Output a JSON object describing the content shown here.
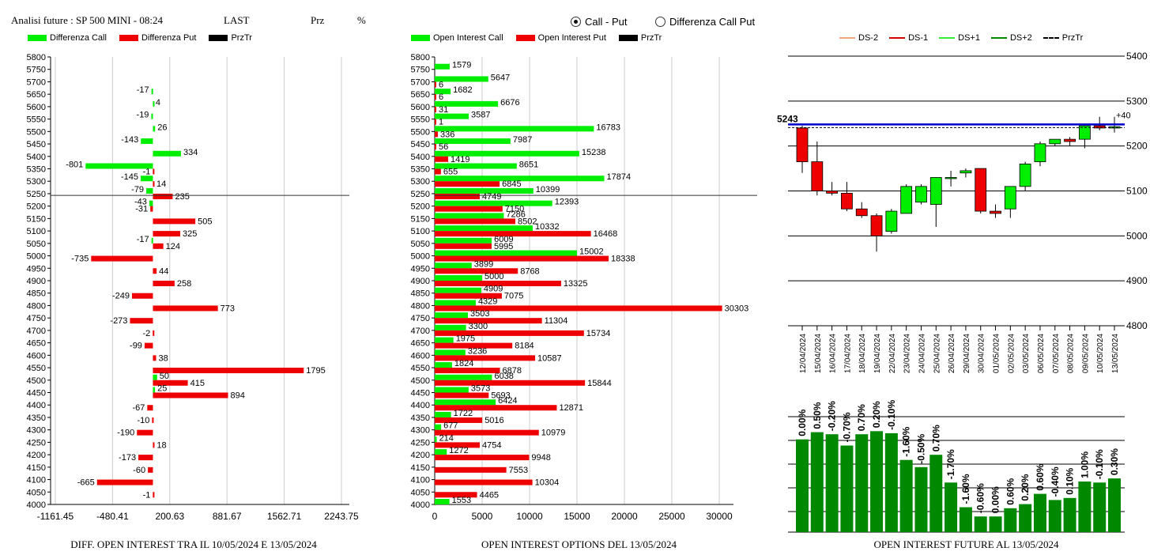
{
  "header": {
    "title": "Analisi future : SP 500 MINI - 08:24",
    "last_label": "LAST",
    "prz_label": "Prz",
    "pct_label": "%"
  },
  "radios": [
    {
      "label": "Call - Put",
      "selected": true
    },
    {
      "label": "Differenza Call Put",
      "selected": false
    }
  ],
  "colors": {
    "green": "#00ee00",
    "red": "#ee0000",
    "darkgreen": "#008800",
    "blue": "#0000cc"
  },
  "legend_left": [
    {
      "label": "Differenza Call",
      "color": "#00ee00"
    },
    {
      "label": "Differenza Put",
      "color": "#ee0000"
    },
    {
      "label": "PrzTr",
      "color": "#000000"
    }
  ],
  "legend_mid": [
    {
      "label": "Open Interest Call",
      "color": "#00ee00"
    },
    {
      "label": "Open Interest Put",
      "color": "#ee0000"
    },
    {
      "label": "PrzTr",
      "color": "#000000"
    }
  ],
  "legend_right": [
    {
      "label": "DS-2",
      "color": "#f4a582",
      "style": "solid"
    },
    {
      "label": "DS-1",
      "color": "#dd0000",
      "style": "solid"
    },
    {
      "label": "DS+1",
      "color": "#33ee33",
      "style": "solid"
    },
    {
      "label": "DS+2",
      "color": "#008800",
      "style": "solid"
    },
    {
      "label": "PrzTr",
      "color": "#000000",
      "style": "dashed"
    }
  ],
  "captions": {
    "left": "DIFF. OPEN INTEREST TRA IL 10/05/2024 E 13/05/2024",
    "mid": "OPEN INTEREST OPTIONS DEL 13/05/2024",
    "right": "OPEN INTEREST FUTURE AL 13/05/2024"
  },
  "chart_data": [
    {
      "type": "bar",
      "orientation": "horizontal",
      "title": "DIFF. OPEN INTEREST TRA IL 10/05/2024 E 13/05/2024",
      "categories": [
        5800,
        5750,
        5700,
        5650,
        5600,
        5550,
        5500,
        5450,
        5400,
        5350,
        5300,
        5250,
        5200,
        5150,
        5100,
        5050,
        5000,
        4950,
        4900,
        4850,
        4800,
        4750,
        4700,
        4650,
        4600,
        4550,
        4500,
        4450,
        4400,
        4350,
        4300,
        4250,
        4200,
        4150,
        4100,
        4050,
        4000
      ],
      "xticks": [
        "-1161.45",
        "-480.41",
        "200.63",
        "881.67",
        "1562.71",
        "2243.75"
      ],
      "xlim": [
        -1161.45,
        2243.75
      ],
      "reference_price": 5243,
      "series": [
        {
          "name": "Differenza Call",
          "labeled": [
            null,
            null,
            null,
            -17,
            4,
            -19,
            26,
            -143,
            334,
            -801,
            -145,
            -79,
            -43,
            null,
            null,
            -17,
            null,
            null,
            null,
            null,
            null,
            null,
            null,
            null,
            null,
            null,
            50,
            25,
            null,
            null,
            null,
            null,
            null,
            null,
            null,
            null,
            null
          ]
        },
        {
          "name": "Differenza Put",
          "labeled": [
            null,
            null,
            null,
            null,
            null,
            null,
            null,
            null,
            null,
            -1,
            14,
            235,
            -31,
            505,
            325,
            124,
            -735,
            44,
            258,
            -249,
            773,
            -273,
            -2,
            -99,
            38,
            1795,
            415,
            894,
            -67,
            -10,
            -190,
            18,
            -173,
            -60,
            -665,
            -1,
            null
          ]
        }
      ],
      "label_strings": [
        [
          "",
          "",
          ""
        ],
        [
          "",
          "",
          ""
        ],
        [
          "",
          "",
          ""
        ],
        [
          "-17",
          "",
          ""
        ],
        [
          "4",
          "",
          ""
        ],
        [
          "-19",
          "",
          ""
        ],
        [
          "26",
          "",
          ""
        ],
        [
          "-143",
          "",
          ""
        ],
        [
          "334",
          "",
          ""
        ],
        [
          "-801",
          "-1",
          ""
        ],
        [
          "-145",
          "14",
          ""
        ],
        [
          "-79",
          "235",
          ""
        ],
        [
          "-43",
          "-31",
          ""
        ],
        [
          "",
          "505",
          ""
        ],
        [
          "",
          "325",
          ""
        ],
        [
          "-17",
          "124",
          ""
        ],
        [
          "",
          "-735",
          ""
        ],
        [
          "",
          "44",
          ""
        ],
        [
          "",
          "258",
          ""
        ],
        [
          "",
          "-249",
          ""
        ],
        [
          "",
          "773",
          ""
        ],
        [
          "",
          "-273",
          ""
        ],
        [
          "",
          "-2",
          ""
        ],
        [
          "",
          "-99",
          ""
        ],
        [
          "",
          "38",
          ""
        ],
        [
          "",
          "1795",
          ""
        ],
        [
          "50",
          "415",
          ""
        ],
        [
          "25",
          "894",
          ""
        ],
        [
          "",
          "-67",
          ""
        ],
        [
          "",
          "-10",
          ""
        ],
        [
          "",
          "-190",
          ""
        ],
        [
          "",
          "18",
          ""
        ],
        [
          "",
          "-173",
          ""
        ],
        [
          "",
          "-60",
          ""
        ],
        [
          "",
          "-665",
          ""
        ],
        [
          "",
          "-1",
          ""
        ],
        [
          "",
          "",
          ""
        ]
      ]
    },
    {
      "type": "bar",
      "orientation": "horizontal",
      "title": "OPEN INTEREST OPTIONS DEL 13/05/2024",
      "categories": [
        5800,
        5750,
        5700,
        5650,
        5600,
        5550,
        5500,
        5450,
        5400,
        5350,
        5300,
        5250,
        5200,
        5150,
        5100,
        5050,
        5000,
        4950,
        4900,
        4850,
        4800,
        4750,
        4700,
        4650,
        4600,
        4550,
        4500,
        4450,
        4400,
        4350,
        4300,
        4250,
        4200,
        4150,
        4100,
        4050,
        4000
      ],
      "xticks": [
        "0",
        "5000",
        "10000",
        "15000",
        "20000",
        "25000",
        "30000"
      ],
      "xlim": [
        0,
        31500
      ],
      "reference_price": 5243,
      "series": [
        {
          "name": "Open Interest Call",
          "values": [
            0,
            1579,
            5647,
            1682,
            6676,
            3587,
            16783,
            7987,
            15238,
            8651,
            17874,
            10399,
            12393,
            7286,
            10332,
            6009,
            15002,
            3899,
            5000,
            4909,
            4329,
            3503,
            3300,
            1975,
            3236,
            1824,
            6038,
            3573,
            6424,
            1722,
            677,
            214,
            1272,
            0,
            0,
            0,
            1553
          ]
        },
        {
          "name": "Open Interest Put",
          "values": [
            0,
            0,
            6,
            6,
            31,
            1,
            336,
            56,
            1419,
            655,
            6845,
            4749,
            7150,
            8502,
            16468,
            5995,
            18338,
            8768,
            13325,
            7075,
            30303,
            11304,
            15734,
            8184,
            10587,
            6878,
            15844,
            5693,
            12871,
            5016,
            10979,
            4754,
            9948,
            7553,
            10304,
            4465,
            0
          ]
        }
      ],
      "label_strings": [
        [
          "",
          ""
        ],
        [
          "1579",
          ""
        ],
        [
          "5647",
          "6"
        ],
        [
          "1682",
          "6"
        ],
        [
          "6676",
          "31"
        ],
        [
          "3587",
          "1"
        ],
        [
          "16783",
          "336"
        ],
        [
          "7987",
          "56"
        ],
        [
          "15238",
          "1419"
        ],
        [
          "8651",
          "655"
        ],
        [
          "17874",
          "6845"
        ],
        [
          "10399",
          "4749"
        ],
        [
          "12393",
          "7150"
        ],
        [
          "7286",
          "8502"
        ],
        [
          "10332",
          "16468"
        ],
        [
          "6009",
          "5995"
        ],
        [
          "15002",
          "18338"
        ],
        [
          "3899",
          "8768"
        ],
        [
          "5000",
          "13325"
        ],
        [
          "4909",
          "7075"
        ],
        [
          "4329",
          "30303"
        ],
        [
          "3503",
          "11304"
        ],
        [
          "3300",
          "15734"
        ],
        [
          "1975",
          "8184"
        ],
        [
          "3236",
          "10587"
        ],
        [
          "1824",
          "6878"
        ],
        [
          "6038",
          "15844"
        ],
        [
          "3573",
          "5693"
        ],
        [
          "6424",
          "12871"
        ],
        [
          "1722",
          "5016"
        ],
        [
          "677",
          "10979"
        ],
        [
          "214",
          "4754"
        ],
        [
          "1272",
          "9948"
        ],
        [
          "",
          "7553"
        ],
        [
          "",
          "10304"
        ],
        [
          "",
          "4465"
        ],
        [
          "1553",
          ""
        ]
      ]
    },
    {
      "type": "candlestick",
      "title": "OPEN INTEREST FUTURE AL 13/05/2024",
      "dates": [
        "12/04/2024",
        "15/04/2024",
        "16/04/2024",
        "17/04/2024",
        "18/04/2024",
        "19/04/2024",
        "22/04/2024",
        "23/04/2024",
        "24/04/2024",
        "25/04/2024",
        "26/04/2024",
        "29/04/2024",
        "30/04/2024",
        "01/05/2024",
        "02/05/2024",
        "03/05/2024",
        "06/05/2024",
        "07/05/2024",
        "08/05/2024",
        "09/05/2024",
        "10/05/2024",
        "13/05/2024"
      ],
      "ohlc": [
        [
          5240,
          5245,
          5140,
          5165
        ],
        [
          5165,
          5210,
          5090,
          5100
        ],
        [
          5100,
          5120,
          5090,
          5095
        ],
        [
          5095,
          5120,
          5055,
          5060
        ],
        [
          5060,
          5075,
          5040,
          5045
        ],
        [
          5045,
          5050,
          4965,
          5000
        ],
        [
          5010,
          5060,
          5005,
          5055
        ],
        [
          5050,
          5115,
          5050,
          5110
        ],
        [
          5075,
          5115,
          5070,
          5110
        ],
        [
          5070,
          5130,
          5020,
          5130
        ],
        [
          5130,
          5145,
          5110,
          5130
        ],
        [
          5140,
          5150,
          5130,
          5145
        ],
        [
          5150,
          5150,
          5050,
          5055
        ],
        [
          5055,
          5070,
          5040,
          5050
        ],
        [
          5060,
          5110,
          5040,
          5110
        ],
        [
          5110,
          5165,
          5100,
          5160
        ],
        [
          5165,
          5210,
          5155,
          5205
        ],
        [
          5205,
          5215,
          5200,
          5215
        ],
        [
          5215,
          5220,
          5200,
          5210
        ],
        [
          5215,
          5250,
          5195,
          5245
        ],
        [
          5245,
          5265,
          5235,
          5240
        ],
        [
          5240,
          5265,
          5230,
          5243
        ]
      ],
      "yticks": [
        "5400",
        "5300",
        "5200",
        "5100",
        "5000",
        "4900",
        "4800"
      ],
      "ylim": [
        4800,
        5400
      ],
      "price_label": "5243",
      "change_label": "+40",
      "ref_line": 5248,
      "oi_pct_labels": [
        "0.00%",
        "0.50%",
        "-0.20%",
        "-0.70%",
        "0.70%",
        "0.20%",
        "-0.10%",
        "-1.60%",
        "-0.50%",
        "0.70%",
        "-1.70%",
        "-1.60%",
        "-0.60%",
        "0.00%",
        "0.60%",
        "0.20%",
        "0.60%",
        "-0.40%",
        "0.10%",
        "1.00%",
        "-0.10%",
        "0.30%"
      ],
      "oi_levels": [
        0.81,
        0.88,
        0.86,
        0.75,
        0.86,
        0.89,
        0.87,
        0.61,
        0.54,
        0.66,
        0.39,
        0.15,
        0.06,
        0.06,
        0.14,
        0.18,
        0.28,
        0.22,
        0.24,
        0.4,
        0.39,
        0.43
      ]
    }
  ]
}
